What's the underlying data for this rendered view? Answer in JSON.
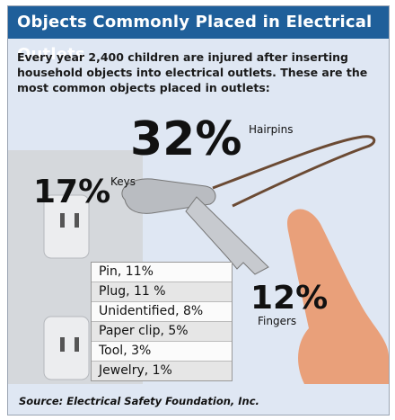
{
  "title": "Objects Commonly Placed in Electrical Outlets",
  "intro": "Every year 2,400 children are injured after inserting household objects into electrical outlets. These are the most common objects placed in outlets:",
  "source": "Source: Electrical Safety Foundation, Inc.",
  "stats": {
    "hairpins": {
      "pct": "32%",
      "label": "Hairpins"
    },
    "keys": {
      "pct": "17%",
      "label": "Keys"
    },
    "fingers": {
      "pct": "12%",
      "label": "Fingers"
    }
  },
  "list": [
    "Pin, 11%",
    "Plug, 11 %",
    "Unidentified, 8%",
    "Paper clip, 5%",
    "Tool, 3%",
    "Jewelry, 1%"
  ],
  "chart_data": {
    "type": "table",
    "title": "Objects Commonly Placed in Electrical Outlets",
    "categories": [
      "Hairpins",
      "Keys",
      "Fingers",
      "Pin",
      "Plug",
      "Unidentified",
      "Paper clip",
      "Tool",
      "Jewelry"
    ],
    "values": [
      32,
      17,
      12,
      11,
      11,
      8,
      5,
      3,
      1
    ]
  },
  "colors": {
    "header": "#1f5f9a",
    "background": "#dfe7f3"
  }
}
